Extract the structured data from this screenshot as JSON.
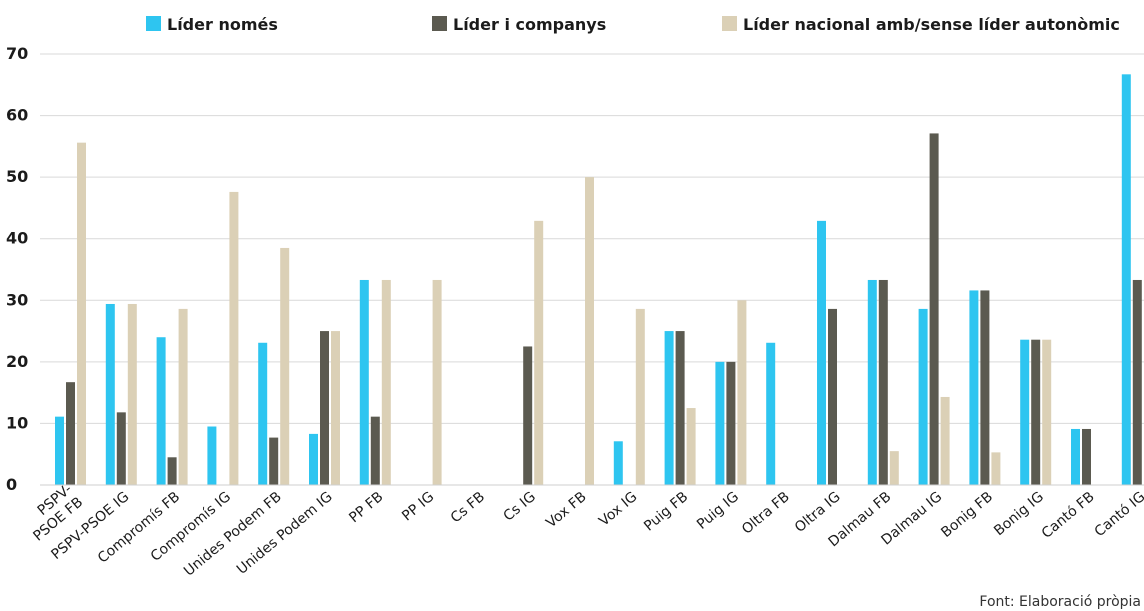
{
  "chart_data": {
    "type": "bar",
    "categories": [
      "PSPV-PSOE FB",
      "PSPV-PSOE IG",
      "Compromís FB",
      "Compromís IG",
      "Unides Podem FB",
      "Unides Podem IG",
      "PP FB",
      "PP IG",
      "Cs FB",
      "Cs IG",
      "Vox FB",
      "Vox IG",
      "Puig FB",
      "Puig IG",
      "Oltra FB",
      "Oltra IG",
      "Dalmau FB",
      "Dalmau IG",
      "Bonig FB",
      "Bonig IG",
      "Cantó FB",
      "Cantó IG"
    ],
    "series": [
      {
        "name": "Líder només",
        "color": "#2ec5f0",
        "values": [
          11.1,
          29.4,
          24.0,
          9.5,
          23.1,
          8.3,
          33.3,
          0,
          0,
          0,
          0,
          7.1,
          25.0,
          20.0,
          23.1,
          42.9,
          33.3,
          28.6,
          31.6,
          23.6,
          9.1,
          66.7
        ]
      },
      {
        "name": "Líder i companys",
        "color": "#5b5a50",
        "values": [
          16.7,
          11.8,
          4.5,
          0,
          7.7,
          25.0,
          11.1,
          0,
          0,
          22.5,
          0,
          0,
          25.0,
          20.0,
          0,
          28.6,
          33.3,
          57.1,
          31.6,
          23.6,
          9.1,
          33.3
        ]
      },
      {
        "name": "Líder nacional amb/sense líder autonòmic",
        "color": "#dbd0b6",
        "values": [
          55.6,
          29.4,
          28.6,
          47.6,
          38.5,
          25.0,
          33.3,
          33.3,
          0,
          42.9,
          50.0,
          28.6,
          12.5,
          30.0,
          0,
          0,
          5.5,
          14.3,
          5.3,
          23.6,
          0,
          0
        ]
      }
    ],
    "yticks": [
      0,
      10,
      20,
      30,
      40,
      50,
      60,
      70
    ],
    "ylim": [
      0,
      70
    ],
    "grid": true,
    "legend_position": "top",
    "source": "Font: Elaboració pròpia"
  }
}
